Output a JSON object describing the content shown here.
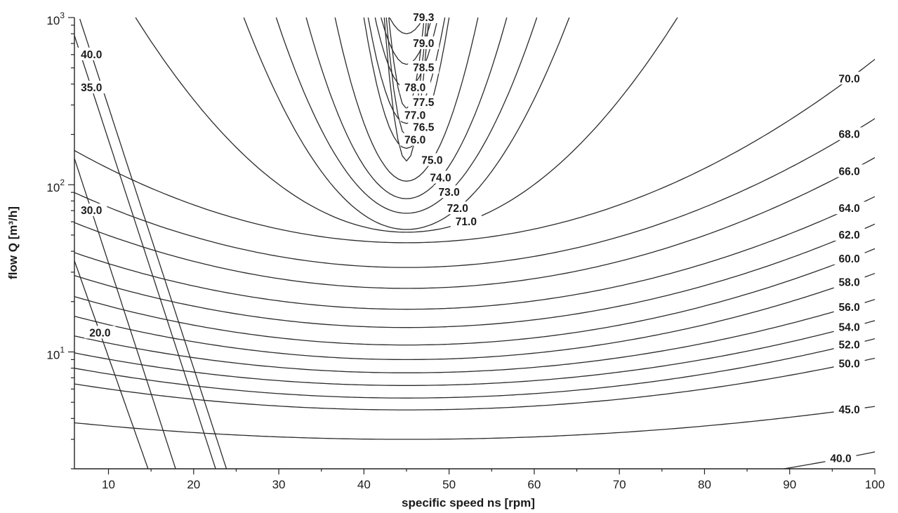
{
  "chart_data": {
    "type": "contour",
    "title": "",
    "xlabel": "specific speed ns [rpm]",
    "ylabel": "flow Q [m³/h]",
    "x_scale": "linear",
    "y_scale": "log",
    "xlim": [
      6,
      100
    ],
    "ylim": [
      2,
      1000
    ],
    "x_ticks": [
      10,
      20,
      30,
      40,
      50,
      60,
      70,
      80,
      90,
      100
    ],
    "y_ticks": [
      {
        "value": 10,
        "base": "10",
        "exp": "1"
      },
      {
        "value": 100,
        "base": "10",
        "exp": "2"
      },
      {
        "value": 1000,
        "base": "10",
        "exp": "3"
      }
    ],
    "grid": false,
    "optimum_ns": 45,
    "levels": [
      {
        "label": "79.3",
        "value": 79.3,
        "label_ns": 47,
        "label_q": 1000,
        "min_q": 800
      },
      {
        "label": "79.0",
        "value": 79.0,
        "label_ns": 47,
        "label_q": 700
      },
      {
        "label": "78.5",
        "value": 78.5,
        "label_ns": 47,
        "label_q": 500
      },
      {
        "label": "78.0",
        "value": 78.0,
        "label_ns": 46,
        "label_q": 380
      },
      {
        "label": "77.5",
        "value": 77.5,
        "label_ns": 47,
        "label_q": 310
      },
      {
        "label": "77.0",
        "value": 77.0,
        "label_ns": 46,
        "label_q": 260
      },
      {
        "label": "76.5",
        "value": 76.5,
        "label_ns": 47,
        "label_q": 220
      },
      {
        "label": "76.0",
        "value": 76.0,
        "label_ns": 46,
        "label_q": 185
      },
      {
        "label": "75.0",
        "value": 75.0,
        "label_ns": 48,
        "label_q": 140
      },
      {
        "label": "74.0",
        "value": 74.0,
        "label_ns": 49,
        "label_q": 110
      },
      {
        "label": "73.0",
        "value": 73.0,
        "label_ns": 50,
        "label_q": 90
      },
      {
        "label": "72.0",
        "value": 72.0,
        "label_ns": 51,
        "label_q": 72
      },
      {
        "label": "71.0",
        "value": 71.0,
        "label_ns": 52,
        "label_q": 60,
        "min_q": 52
      },
      {
        "label": "70.0",
        "value": 70.0,
        "label_ns": 97,
        "label_q": 430,
        "min_q": 45
      },
      {
        "label": "68.0",
        "value": 68.0,
        "label_ns": 97,
        "label_q": 200,
        "min_q": 32
      },
      {
        "label": "66.0",
        "value": 66.0,
        "label_ns": 97,
        "label_q": 120,
        "min_q": 24
      },
      {
        "label": "64.0",
        "value": 64.0,
        "label_ns": 97,
        "label_q": 72,
        "min_q": 18
      },
      {
        "label": "62.0",
        "value": 62.0,
        "label_ns": 97,
        "label_q": 50,
        "min_q": 14
      },
      {
        "label": "60.0",
        "value": 60.0,
        "label_ns": 97,
        "label_q": 36,
        "min_q": 11
      },
      {
        "label": "58.0",
        "value": 58.0,
        "label_ns": 97,
        "label_q": 26,
        "min_q": 9
      },
      {
        "label": "56.0",
        "value": 56.0,
        "label_ns": 97,
        "label_q": 18.5,
        "min_q": 7.5
      },
      {
        "label": "54.0",
        "value": 54.0,
        "label_ns": 97,
        "label_q": 14,
        "min_q": 6.3
      },
      {
        "label": "52.0",
        "value": 52.0,
        "label_ns": 97,
        "label_q": 11,
        "min_q": 5.3
      },
      {
        "label": "50.0",
        "value": 50.0,
        "label_ns": 97,
        "label_q": 8.5,
        "min_q": 4.5
      },
      {
        "label": "45.0",
        "value": 45.0,
        "label_ns": 97,
        "label_q": 4.5,
        "min_q": 3.0
      },
      {
        "label": "40.0",
        "value": 40.0,
        "label_ns": 96,
        "label_q": 2.3,
        "min_q": 1.3
      },
      {
        "label": "40.0",
        "value": 40.0,
        "label_ns": 8,
        "label_q": 600,
        "left_branch": true
      },
      {
        "label": "35.0",
        "value": 35.0,
        "label_ns": 8,
        "label_q": 380,
        "left_branch": true
      },
      {
        "label": "30.0",
        "value": 30.0,
        "label_ns": 8,
        "label_q": 70,
        "left_branch": true
      },
      {
        "label": "20.0",
        "value": 20.0,
        "label_ns": 9,
        "label_q": 13,
        "left_branch": true
      }
    ]
  }
}
